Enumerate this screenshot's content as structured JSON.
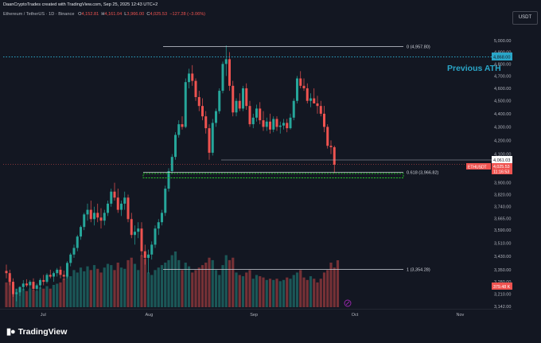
{
  "header": {
    "credit": "DaanCryptoTrades created with TradingView.com, Sep 25, 2025 12:43 UTC+2",
    "symbol": "Ethereum / TetherUS · 1D · Binance",
    "open_label": "O",
    "open": "4,152.81",
    "high_label": "H",
    "high": "4,161.04",
    "low_label": "L",
    "low": "3,966.00",
    "close_label": "C",
    "close": "4,025.53",
    "change": "−127.28 (−3.06%)"
  },
  "currency": "USDT",
  "annotations": {
    "previous_ath": "Previous ATH",
    "fib_0": "0 (4,957.80)",
    "fib_618": "0.618 (3,966.82)",
    "fib_1": "1 (3,354.28)"
  },
  "price_badges": {
    "ath": "4,868.00",
    "level": "4,061.03",
    "ticker": "ETHUSDT",
    "last": "4,025.53",
    "countdown": "11:16:53",
    "volume": "379.48 K"
  },
  "brand": "TradingView",
  "colors": {
    "background": "#131722",
    "up": "#26a69a",
    "down": "#ef5350",
    "ath_line": "#2aa6c8",
    "support_box": "#22cc22"
  },
  "chart_data": {
    "type": "candlestick",
    "title": "Ethereum / TetherUS · 1D · Binance",
    "yaxis": {
      "ticks": [
        5000,
        4900,
        4800,
        4700,
        4600,
        4500,
        4400,
        4300,
        4200,
        4100,
        4000,
        3900,
        3820,
        3740,
        3665,
        3590,
        3510,
        3430,
        3350,
        3280,
        3210,
        3142
      ],
      "tick_labels": [
        "5,000.00",
        "4,900.00",
        "4,800.00",
        "4,700.00",
        "4,600.00",
        "4,500.00",
        "4,400.00",
        "4,300.00",
        "4,200.00",
        "4,100.00",
        "4,000.00",
        "3,900.00",
        "3,820.00",
        "3,740.00",
        "3,665.00",
        "3,590.00",
        "3,510.00",
        "3,430.00",
        "3,350.00",
        "3,280.00",
        "3,210.00",
        "3,142.00"
      ],
      "scale": "log"
    },
    "xaxis": {
      "tick_labels": [
        "Jul",
        "Aug",
        "Sep",
        "Oct",
        "Nov"
      ],
      "tick_index": [
        11,
        42,
        73,
        103,
        134
      ]
    },
    "candles": [
      [
        3343,
        3380,
        3300,
        3330
      ],
      [
        3330,
        3350,
        3260,
        3280
      ],
      [
        3280,
        3300,
        3195,
        3210
      ],
      [
        3210,
        3240,
        3170,
        3220
      ],
      [
        3220,
        3255,
        3200,
        3250
      ],
      [
        3250,
        3290,
        3230,
        3270
      ],
      [
        3270,
        3295,
        3250,
        3260
      ],
      [
        3260,
        3290,
        3240,
        3280
      ],
      [
        3280,
        3300,
        3230,
        3240
      ],
      [
        3240,
        3270,
        3225,
        3260
      ],
      [
        3260,
        3300,
        3240,
        3290
      ],
      [
        3290,
        3320,
        3260,
        3280
      ],
      [
        3280,
        3330,
        3270,
        3320
      ],
      [
        3320,
        3350,
        3300,
        3310
      ],
      [
        3310,
        3340,
        3280,
        3330
      ],
      [
        3330,
        3360,
        3310,
        3350
      ],
      [
        3350,
        3370,
        3300,
        3320
      ],
      [
        3320,
        3345,
        3290,
        3310
      ],
      [
        3310,
        3400,
        3300,
        3390
      ],
      [
        3390,
        3450,
        3370,
        3440
      ],
      [
        3440,
        3500,
        3420,
        3480
      ],
      [
        3480,
        3560,
        3460,
        3550
      ],
      [
        3550,
        3620,
        3530,
        3610
      ],
      [
        3610,
        3700,
        3590,
        3690
      ],
      [
        3690,
        3760,
        3650,
        3720
      ],
      [
        3720,
        3780,
        3640,
        3660
      ],
      [
        3660,
        3740,
        3620,
        3700
      ],
      [
        3700,
        3760,
        3640,
        3670
      ],
      [
        3670,
        3730,
        3600,
        3650
      ],
      [
        3650,
        3720,
        3620,
        3700
      ],
      [
        3700,
        3780,
        3680,
        3760
      ],
      [
        3760,
        3860,
        3740,
        3840
      ],
      [
        3840,
        3900,
        3780,
        3800
      ],
      [
        3800,
        3860,
        3700,
        3720
      ],
      [
        3720,
        3780,
        3680,
        3760
      ],
      [
        3760,
        3840,
        3720,
        3800
      ],
      [
        3800,
        3820,
        3640,
        3660
      ],
      [
        3660,
        3700,
        3540,
        3560
      ],
      [
        3560,
        3620,
        3500,
        3580
      ],
      [
        3580,
        3640,
        3540,
        3600
      ],
      [
        3600,
        3640,
        3430,
        3460
      ],
      [
        3460,
        3500,
        3380,
        3420
      ],
      [
        3420,
        3470,
        3330,
        3440
      ],
      [
        3440,
        3520,
        3410,
        3500
      ],
      [
        3500,
        3620,
        3480,
        3600
      ],
      [
        3600,
        3660,
        3560,
        3640
      ],
      [
        3640,
        3720,
        3620,
        3700
      ],
      [
        3700,
        3880,
        3680,
        3860
      ],
      [
        3860,
        4000,
        3840,
        3980
      ],
      [
        3980,
        4100,
        3960,
        4080
      ],
      [
        4080,
        4260,
        4060,
        4240
      ],
      [
        4240,
        4350,
        4220,
        4320
      ],
      [
        4320,
        4380,
        4280,
        4300
      ],
      [
        4300,
        4680,
        4290,
        4650
      ],
      [
        4650,
        4760,
        4600,
        4720
      ],
      [
        4720,
        4790,
        4620,
        4660
      ],
      [
        4660,
        4680,
        4500,
        4530
      ],
      [
        4530,
        4580,
        4420,
        4460
      ],
      [
        4460,
        4520,
        4350,
        4380
      ],
      [
        4380,
        4420,
        4250,
        4290
      ],
      [
        4290,
        4320,
        4060,
        4110
      ],
      [
        4110,
        4360,
        4090,
        4330
      ],
      [
        4330,
        4440,
        4300,
        4420
      ],
      [
        4420,
        4600,
        4400,
        4580
      ],
      [
        4580,
        4820,
        4560,
        4800
      ],
      [
        4800,
        4957,
        4700,
        4840
      ],
      [
        4840,
        4900,
        4580,
        4620
      ],
      [
        4620,
        4660,
        4380,
        4410
      ],
      [
        4410,
        4520,
        4380,
        4500
      ],
      [
        4500,
        4560,
        4420,
        4440
      ],
      [
        4440,
        4620,
        4420,
        4600
      ],
      [
        4600,
        4640,
        4430,
        4460
      ],
      [
        4460,
        4500,
        4300,
        4320
      ],
      [
        4320,
        4400,
        4290,
        4370
      ],
      [
        4370,
        4470,
        4340,
        4440
      ],
      [
        4440,
        4490,
        4320,
        4350
      ],
      [
        4350,
        4420,
        4270,
        4300
      ],
      [
        4300,
        4370,
        4270,
        4340
      ],
      [
        4340,
        4400,
        4250,
        4280
      ],
      [
        4280,
        4380,
        4260,
        4360
      ],
      [
        4360,
        4380,
        4270,
        4300
      ],
      [
        4300,
        4340,
        4250,
        4310
      ],
      [
        4310,
        4360,
        4280,
        4330
      ],
      [
        4330,
        4360,
        4260,
        4290
      ],
      [
        4290,
        4400,
        4280,
        4370
      ],
      [
        4370,
        4520,
        4350,
        4500
      ],
      [
        4500,
        4700,
        4480,
        4680
      ],
      [
        4680,
        4740,
        4600,
        4620
      ],
      [
        4620,
        4680,
        4580,
        4600
      ],
      [
        4600,
        4640,
        4480,
        4500
      ],
      [
        4500,
        4560,
        4450,
        4520
      ],
      [
        4520,
        4600,
        4480,
        4480
      ],
      [
        4480,
        4540,
        4400,
        4460
      ],
      [
        4460,
        4500,
        4380,
        4400
      ],
      [
        4400,
        4460,
        4260,
        4300
      ],
      [
        4300,
        4320,
        4140,
        4160
      ],
      [
        4160,
        4200,
        4100,
        4150
      ],
      [
        4150,
        4161,
        3966,
        4025
      ]
    ],
    "volume": [
      200,
      240,
      180,
      150,
      120,
      150,
      130,
      150,
      140,
      130,
      160,
      150,
      170,
      150,
      180,
      190,
      200,
      230,
      260,
      250,
      300,
      280,
      320,
      290,
      330,
      300,
      340,
      310,
      280,
      320,
      350,
      340,
      300,
      360,
      320,
      310,
      380,
      400,
      350,
      300,
      420,
      390,
      280,
      260,
      300,
      320,
      340,
      360,
      380,
      420,
      450,
      380,
      300,
      360,
      330,
      280,
      300,
      320,
      340,
      360,
      400,
      380,
      300,
      260,
      340,
      420,
      380,
      400,
      280,
      260,
      250,
      280,
      300,
      230,
      260,
      250,
      240,
      220,
      230,
      220,
      230,
      210,
      220,
      240,
      230,
      260,
      280,
      300,
      240,
      220,
      250,
      230,
      200,
      230,
      280,
      300,
      360,
      320,
      379
    ]
  }
}
